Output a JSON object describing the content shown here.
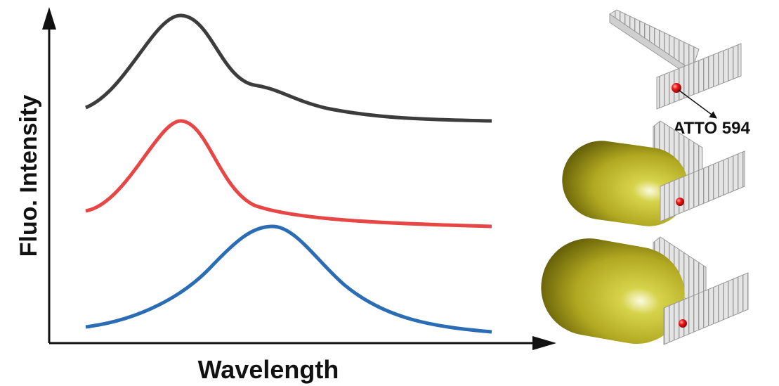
{
  "axes": {
    "y_label": "Fluo. Intensity",
    "x_label": "Wavelength"
  },
  "annotation": "ATTO 594"
}
